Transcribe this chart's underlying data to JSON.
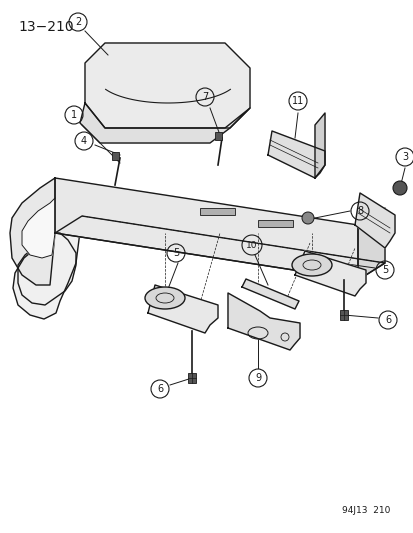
{
  "title": "13−210",
  "footer": "94J13  210",
  "bg_color": "#ffffff",
  "line_color": "#1a1a1a",
  "fig_w": 4.14,
  "fig_h": 5.33,
  "dpi": 100
}
